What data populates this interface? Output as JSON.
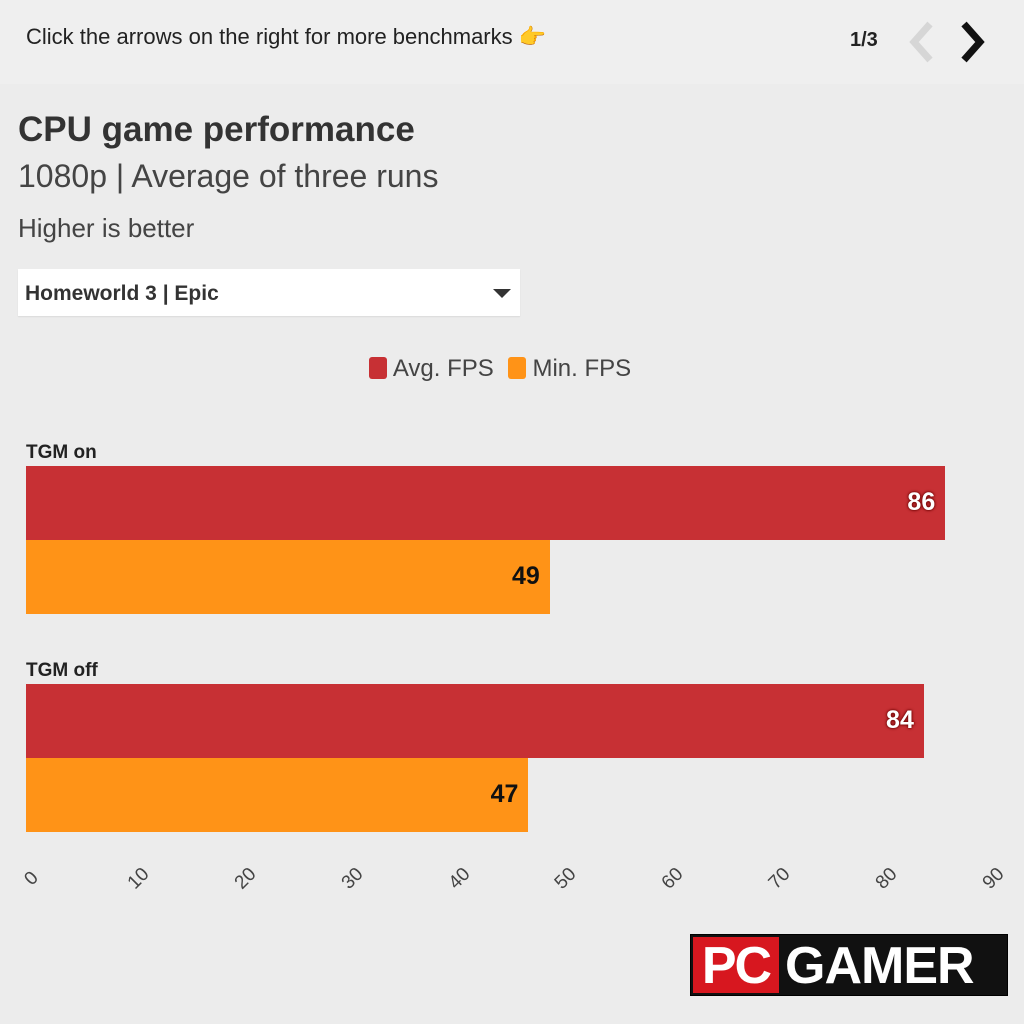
{
  "header": {
    "hint": "Click the arrows on the right for more benchmarks 👉",
    "pager": "1/3"
  },
  "chart_data": {
    "type": "bar",
    "orientation": "horizontal",
    "title": "CPU game performance",
    "subtitle": "1080p | Average of three runs",
    "note": "Higher is better",
    "selector": "Homeworld 3 | Epic",
    "categories": [
      "TGM on",
      "TGM off"
    ],
    "series": [
      {
        "name": "Avg. FPS",
        "values": [
          86,
          84
        ],
        "color": "#c73034"
      },
      {
        "name": "Min. FPS",
        "values": [
          49,
          47
        ],
        "color": "#ff9317"
      }
    ],
    "xlim": [
      0,
      90
    ],
    "xticks": [
      0,
      10,
      20,
      30,
      40,
      50,
      60,
      70,
      80,
      90
    ],
    "legend": "top-center",
    "grid": false
  },
  "logo": {
    "left": "PC",
    "right": "GAMER"
  }
}
